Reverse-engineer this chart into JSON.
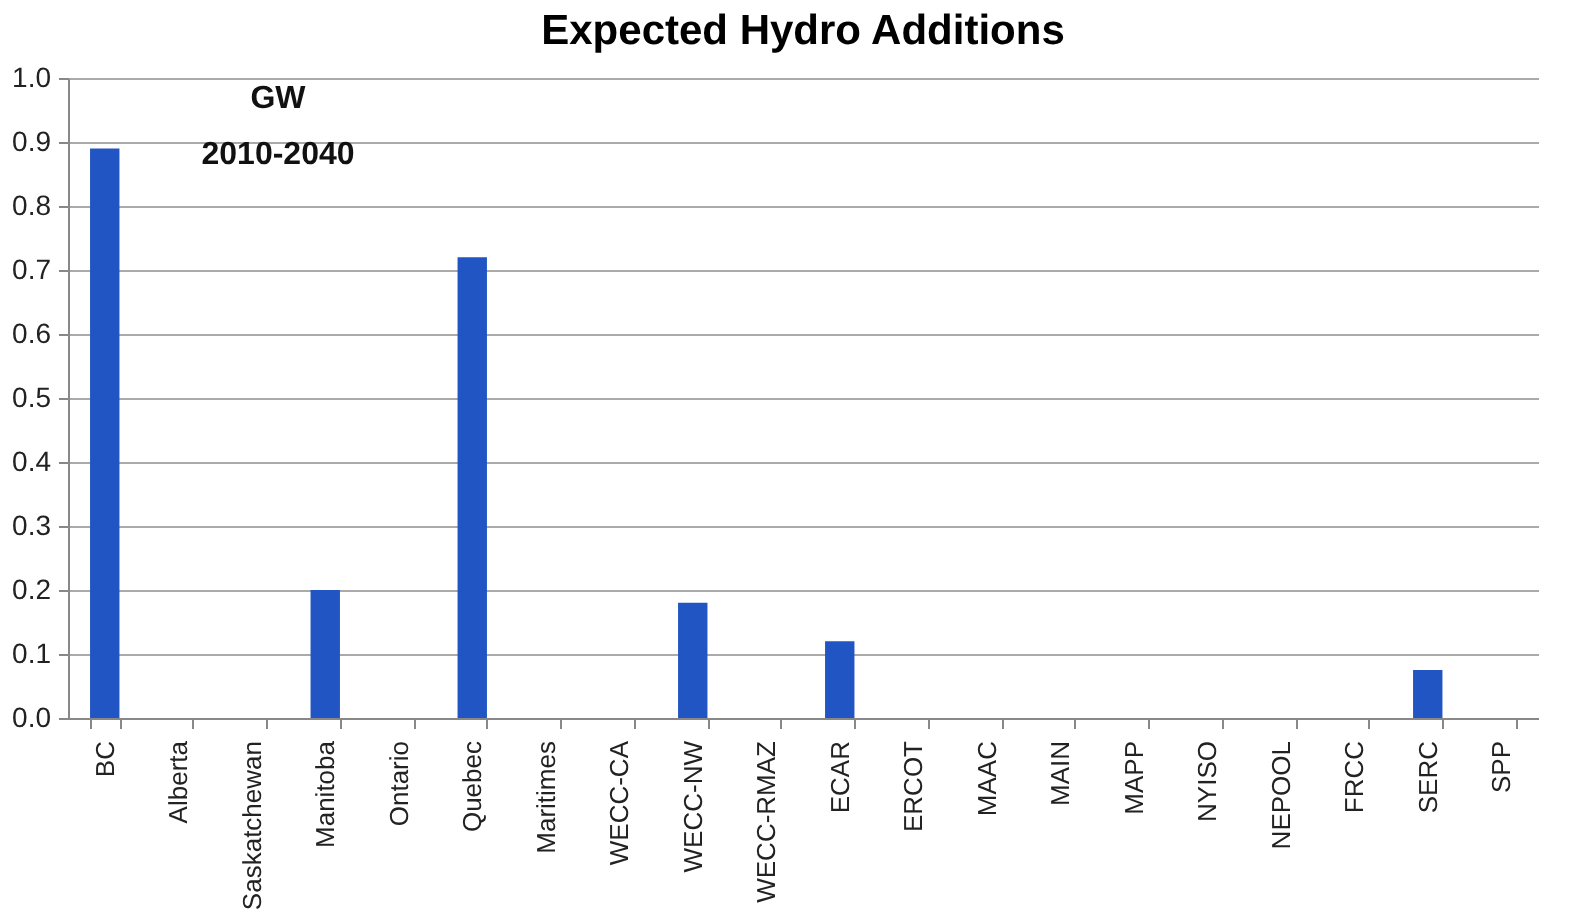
{
  "chart_data": {
    "type": "bar",
    "title": "Expected Hydro Additions",
    "annotations": [
      "GW",
      "2010-2040"
    ],
    "categories": [
      "BC",
      "Alberta",
      "Saskatchewan",
      "Manitoba",
      "Ontario",
      "Quebec",
      "Maritimes",
      "WECC-CA",
      "WECC-NW",
      "WECC-RMAZ",
      "ECAR",
      "ERCOT",
      "MAAC",
      "MAIN",
      "MAPP",
      "NYISO",
      "NEPOOL",
      "FRCC",
      "SERC",
      "SPP"
    ],
    "values": [
      0.89,
      0,
      0,
      0.2,
      0,
      0.72,
      0,
      0,
      0.18,
      0,
      0.12,
      0,
      0,
      0,
      0,
      0,
      0,
      0,
      0.075,
      0
    ],
    "color": "#2255c4",
    "ylim": [
      0,
      1
    ],
    "yticks": [
      {
        "value": 0,
        "label": "0.0"
      },
      {
        "value": 0.1,
        "label": "0.1"
      },
      {
        "value": 0.2,
        "label": "0.2"
      },
      {
        "value": 0.3,
        "label": "0.3"
      },
      {
        "value": 0.4,
        "label": "0.4"
      },
      {
        "value": 0.5,
        "label": "0.5"
      },
      {
        "value": 0.6,
        "label": "0.6"
      },
      {
        "value": 0.7,
        "label": "0.7"
      },
      {
        "value": 0.8,
        "label": "0.8"
      },
      {
        "value": 0.9,
        "label": "0.9"
      },
      {
        "value": 1,
        "label": "1.0"
      }
    ],
    "grid": "y"
  }
}
